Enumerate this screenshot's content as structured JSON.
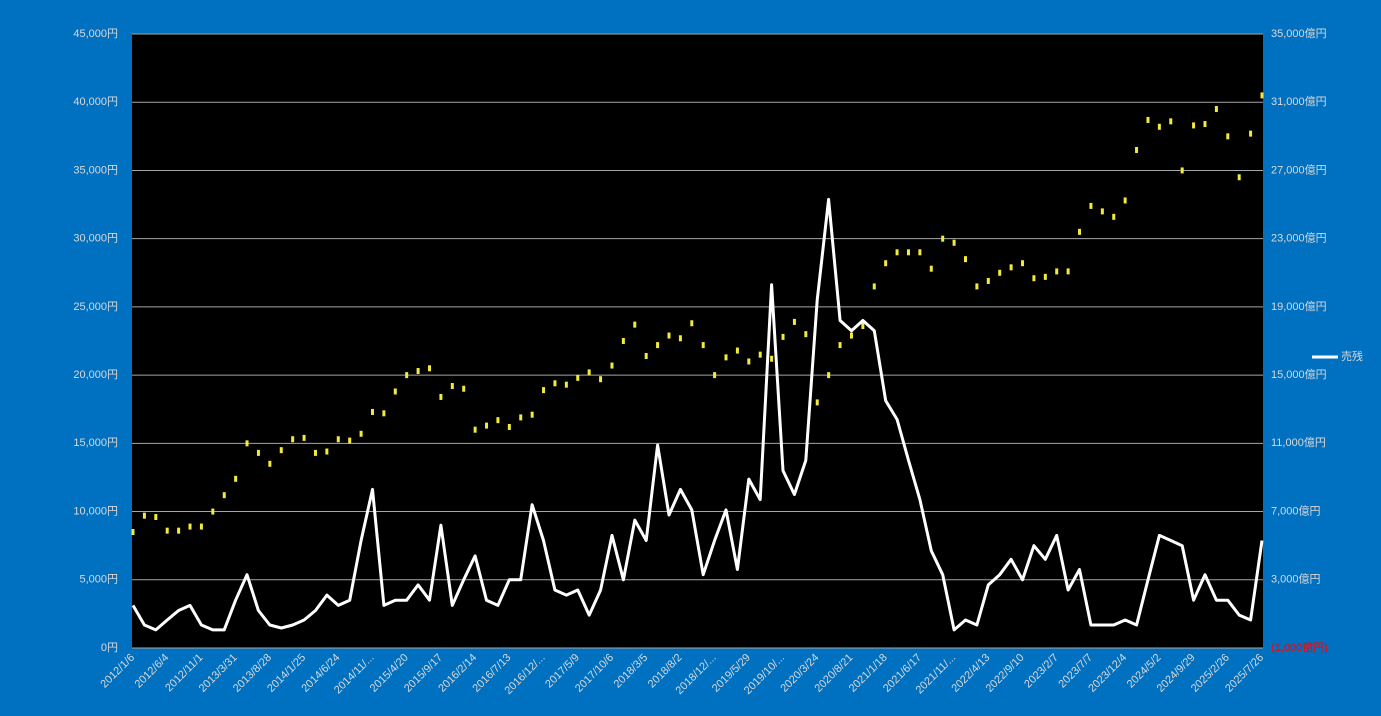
{
  "chart_data": {
    "type": "line",
    "categories": [
      "2012/1/6",
      null,
      null,
      "2012/6/4",
      null,
      null,
      "2012/11/1",
      null,
      null,
      "2013/3/31",
      null,
      null,
      "2013/8/28",
      null,
      null,
      "2014/1/25",
      null,
      null,
      "2014/6/24",
      null,
      null,
      "2014/11/...",
      null,
      null,
      "2015/4/20",
      null,
      null,
      "2015/9/17",
      null,
      null,
      "2016/2/14",
      null,
      null,
      "2016/7/13",
      null,
      null,
      "2016/12/...",
      null,
      null,
      "2017/5/9",
      null,
      null,
      "2017/10/6",
      null,
      null,
      "2018/3/5",
      null,
      null,
      "2018/8/2",
      null,
      null,
      "2018/12/...",
      null,
      null,
      "2019/5/29",
      null,
      null,
      "2019/10/...",
      null,
      null,
      "2020/3/24",
      null,
      null,
      "2020/8/21",
      null,
      null,
      "2021/1/18",
      null,
      null,
      "2021/6/17",
      null,
      null,
      "2021/11/...",
      null,
      null,
      "2022/4/13",
      null,
      null,
      "2022/9/10",
      null,
      null,
      "2023/2/7",
      null,
      null,
      "2023/7/7",
      null,
      null,
      "2023/12/4",
      null,
      null,
      "2024/5/2",
      null,
      null,
      "2024/9/29",
      null,
      null,
      "2025/2/26",
      null,
      null,
      "2025/7/26"
    ],
    "series": [
      {
        "color": "#f2ea3c",
        "style": "dots",
        "values": [
          8500,
          9700,
          9600,
          8600,
          8600,
          8900,
          8900,
          10000,
          11200,
          12400,
          15000,
          14300,
          13500,
          14500,
          15300,
          15400,
          14300,
          14400,
          15300,
          15200,
          15700,
          17300,
          17200,
          18800,
          20000,
          20300,
          20500,
          18400,
          19200,
          19000,
          16000,
          16300,
          16700,
          16200,
          16900,
          17100,
          18900,
          19400,
          19300,
          19800,
          20200,
          19700,
          20700,
          22500,
          23700,
          21400,
          22200,
          22900,
          22700,
          23800,
          22200,
          20000,
          21300,
          21800,
          21000,
          21500,
          21200,
          22800,
          23900,
          23000,
          18000,
          20000,
          22200,
          22900,
          23600,
          26500,
          28200,
          29000,
          29000,
          29000,
          27800,
          30000,
          29700,
          28500,
          26500,
          26900,
          27500,
          27900,
          28200,
          27100,
          27200,
          27600,
          27600,
          30500,
          32400,
          32000,
          31600,
          32800,
          36500,
          38700,
          38200,
          38600,
          35000,
          38300,
          38400,
          39500,
          37500,
          34500,
          37700,
          40500
        ]
      },
      {
        "name": "売残",
        "color": "#ffffff",
        "style": "line",
        "axis": "y2",
        "values": [
          1500,
          350,
          60,
          640,
          1200,
          1500,
          350,
          60,
          60,
          1800,
          3300,
          1200,
          350,
          170,
          350,
          640,
          1200,
          2100,
          1500,
          1800,
          5300,
          8300,
          1500,
          1800,
          1800,
          2700,
          1800,
          6200,
          1500,
          3000,
          4400,
          1800,
          1500,
          3000,
          3000,
          7400,
          5300,
          2400,
          2100,
          2400,
          930,
          2400,
          5600,
          3000,
          6500,
          5300,
          10900,
          6800,
          8300,
          7100,
          3300,
          5300,
          7100,
          3600,
          8900,
          7700,
          20300,
          9400,
          8000,
          10000,
          19400,
          25300,
          18200,
          17600,
          18200,
          17600,
          13500,
          12400,
          10000,
          7700,
          4700,
          3300,
          60,
          640,
          350,
          2700,
          3300,
          4200,
          3000,
          5000,
          4200,
          5600,
          2400,
          3600,
          350,
          350,
          350,
          640,
          350,
          3000,
          5600,
          5300,
          5000,
          1800,
          3300,
          1800,
          1800,
          930,
          640,
          5300
        ]
      }
    ],
    "ylim": [
      0,
      45000
    ],
    "yticks": [
      {
        "value": 0,
        "label": "0円"
      },
      {
        "value": 5000,
        "label": "5,000円"
      },
      {
        "value": 10000,
        "label": "10,000円"
      },
      {
        "value": 15000,
        "label": "15,000円"
      },
      {
        "value": 20000,
        "label": "20,000円"
      },
      {
        "value": 25000,
        "label": "25,000円"
      },
      {
        "value": 30000,
        "label": "30,000円"
      },
      {
        "value": 35000,
        "label": "35,000円"
      },
      {
        "value": 40000,
        "label": "40,000円"
      },
      {
        "value": 45000,
        "label": "45,000円"
      }
    ],
    "y2lim": [
      -1000,
      35000
    ],
    "y2ticks": [
      {
        "value": -1000,
        "label": "(1,000億円)"
      },
      {
        "value": 3000,
        "label": "3,000億円"
      },
      {
        "value": 7000,
        "label": "7,000億円"
      },
      {
        "value": 11000,
        "label": "11,000億円"
      },
      {
        "value": 15000,
        "label": "15,000億円"
      },
      {
        "value": 19000,
        "label": "19,000億円"
      },
      {
        "value": 23000,
        "label": "23,000億円"
      },
      {
        "value": 27000,
        "label": "27,000億円"
      },
      {
        "value": 31000,
        "label": "31,000億円"
      },
      {
        "value": 35000,
        "label": "35,000億円"
      }
    ],
    "grid": true,
    "legend": "right"
  }
}
